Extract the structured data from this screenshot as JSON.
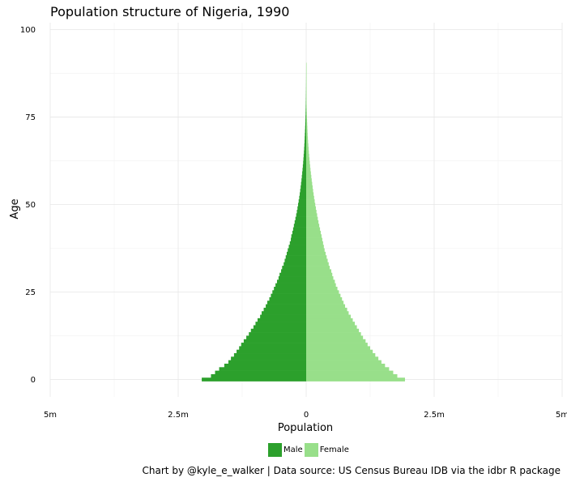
{
  "chart_data": {
    "type": "bar",
    "orientation": "horizontal",
    "title": "Population structure of Nigeria, 1990",
    "xlabel": "Population",
    "ylabel": "Age",
    "caption": "Chart by @kyle_e_walker | Data source: US Census Bureau IDB via the idbr R package",
    "xlim": [
      -5000000,
      5000000
    ],
    "ylim": [
      -5,
      102
    ],
    "x_ticks": [
      {
        "value": -5000000,
        "label": "5m"
      },
      {
        "value": -2500000,
        "label": "2.5m"
      },
      {
        "value": 0,
        "label": "0"
      },
      {
        "value": 2500000,
        "label": "2.5m"
      },
      {
        "value": 5000000,
        "label": "5m"
      }
    ],
    "y_ticks": [
      {
        "value": 0,
        "label": "0"
      },
      {
        "value": 25,
        "label": "25"
      },
      {
        "value": 50,
        "label": "50"
      },
      {
        "value": 75,
        "label": "75"
      },
      {
        "value": 100,
        "label": "100"
      }
    ],
    "grid": true,
    "legend_position": "bottom",
    "age_start": 0,
    "series": [
      {
        "name": "Male",
        "color": "#2ca02c",
        "values": [
          -2040000,
          -1860000,
          -1780000,
          -1700000,
          -1600000,
          -1520000,
          -1470000,
          -1410000,
          -1360000,
          -1310000,
          -1270000,
          -1220000,
          -1170000,
          -1120000,
          -1080000,
          -1030000,
          -990000,
          -950000,
          -900000,
          -870000,
          -830000,
          -790000,
          -760000,
          -720000,
          -690000,
          -660000,
          -630000,
          -600000,
          -570000,
          -540000,
          -520000,
          -490000,
          -470000,
          -440000,
          -420000,
          -400000,
          -380000,
          -360000,
          -340000,
          -320000,
          -300000,
          -290000,
          -270000,
          -255000,
          -240000,
          -225000,
          -210000,
          -195000,
          -182000,
          -170000,
          -158000,
          -147000,
          -136000,
          -126000,
          -117000,
          -108000,
          -100000,
          -92000,
          -85000,
          -78000,
          -71000,
          -65000,
          -59000,
          -54000,
          -49000,
          -44000,
          -40000,
          -36000,
          -32000,
          -29000,
          -26000,
          -23000,
          -20000,
          -17500,
          -15000,
          -13000,
          -11000,
          -9500,
          -8000,
          -6500,
          -5400,
          -4400,
          -3500,
          -2800,
          -2200,
          -1700,
          -1300,
          -1000,
          -700,
          -500,
          -300
        ]
      },
      {
        "name": "Female",
        "color": "#98df8a",
        "values": [
          1930000,
          1780000,
          1700000,
          1620000,
          1540000,
          1470000,
          1410000,
          1350000,
          1300000,
          1250000,
          1200000,
          1160000,
          1110000,
          1070000,
          1030000,
          990000,
          950000,
          910000,
          870000,
          830000,
          800000,
          760000,
          730000,
          700000,
          670000,
          640000,
          610000,
          580000,
          560000,
          530000,
          510000,
          490000,
          460000,
          440000,
          420000,
          400000,
          380000,
          360000,
          345000,
          330000,
          315000,
          300000,
          285000,
          270000,
          255000,
          240000,
          227000,
          214000,
          201000,
          189000,
          177000,
          166000,
          155000,
          145000,
          135000,
          126000,
          117000,
          108000,
          100000,
          92000,
          84000,
          77000,
          70000,
          64000,
          58000,
          52000,
          47000,
          42000,
          37000,
          33000,
          29000,
          26000,
          23000,
          20000,
          17500,
          15000,
          13000,
          11000,
          9500,
          8000,
          6700,
          5500,
          4500,
          3600,
          2900,
          2300,
          1800,
          1400,
          1000,
          700,
          500
        ]
      }
    ]
  }
}
